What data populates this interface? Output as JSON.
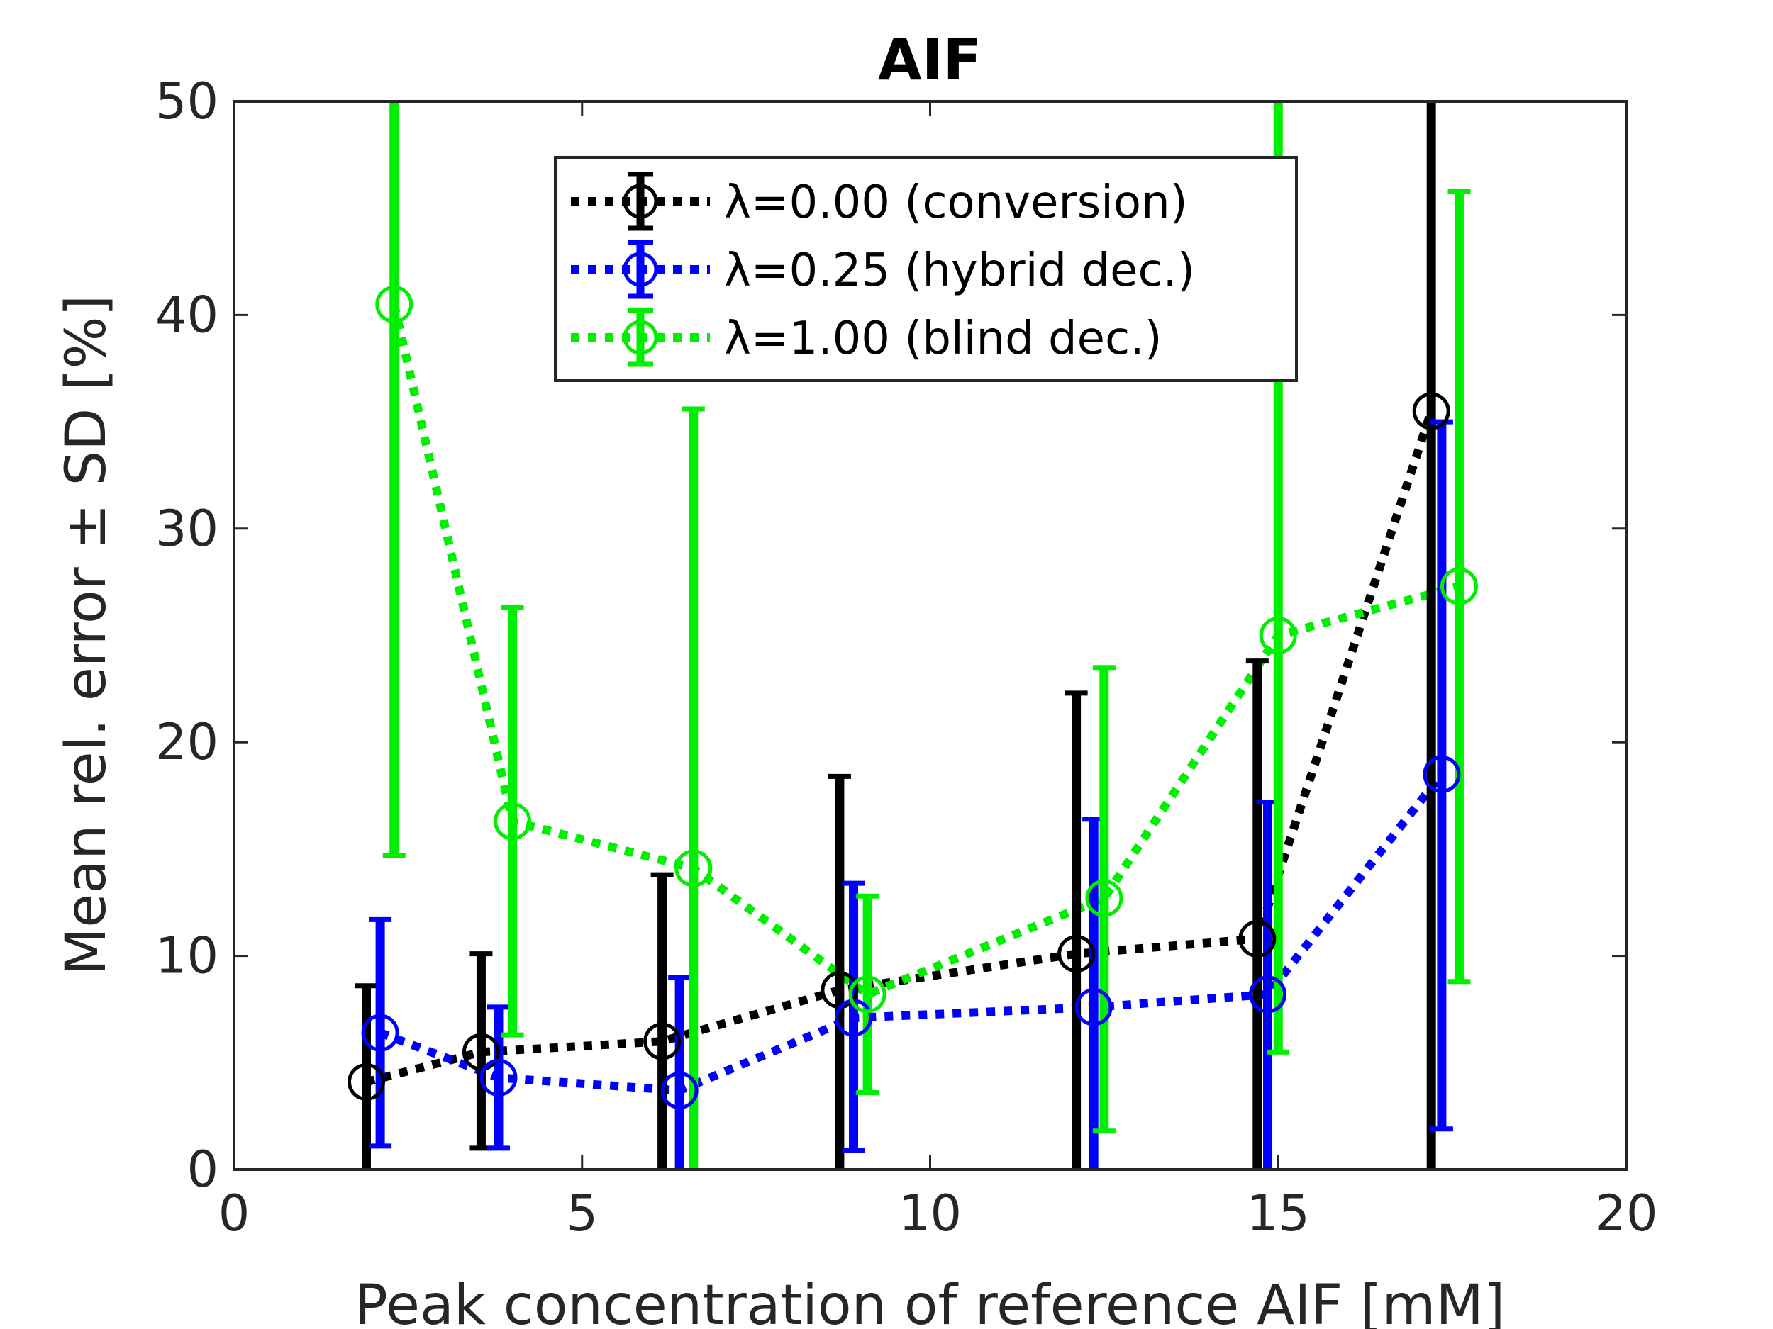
{
  "chart_data": {
    "type": "scatter",
    "title": "AIF",
    "xlabel": "Peak concentration of reference AIF [mM]",
    "ylabel": "Mean rel. error ± SD [%]",
    "xlim": [
      0,
      20
    ],
    "ylim": [
      0,
      50
    ],
    "xticks": [
      0,
      5,
      10,
      15,
      20
    ],
    "yticks": [
      0,
      10,
      20,
      30,
      40,
      50
    ],
    "grid": false,
    "legend_position": "top-center",
    "series": [
      {
        "name": "λ=0.00 (conversion)",
        "color": "#000000",
        "points": [
          {
            "x": 1.9,
            "y": 4.1,
            "lo": 0.0,
            "hi": 8.6
          },
          {
            "x": 3.55,
            "y": 5.5,
            "lo": 1.0,
            "hi": 10.1
          },
          {
            "x": 6.15,
            "y": 6.0,
            "lo": 0.0,
            "hi": 13.8
          },
          {
            "x": 8.7,
            "y": 8.4,
            "lo": 0.0,
            "hi": 18.4
          },
          {
            "x": 12.1,
            "y": 10.1,
            "lo": 0.0,
            "hi": 22.3
          },
          {
            "x": 14.7,
            "y": 10.8,
            "lo": 0.0,
            "hi": 23.8
          },
          {
            "x": 17.2,
            "y": 35.5,
            "lo": 0.0,
            "hi": 50.0
          }
        ]
      },
      {
        "name": "λ=0.25 (hybrid dec.)",
        "color": "#0000ff",
        "points": [
          {
            "x": 2.1,
            "y": 6.4,
            "lo": 1.1,
            "hi": 11.7
          },
          {
            "x": 3.8,
            "y": 4.3,
            "lo": 1.0,
            "hi": 7.6
          },
          {
            "x": 6.4,
            "y": 3.7,
            "lo": 0.0,
            "hi": 9.0
          },
          {
            "x": 8.9,
            "y": 7.1,
            "lo": 0.9,
            "hi": 13.4
          },
          {
            "x": 12.35,
            "y": 7.6,
            "lo": 0.0,
            "hi": 16.4
          },
          {
            "x": 14.85,
            "y": 8.2,
            "lo": 0.0,
            "hi": 17.2
          },
          {
            "x": 17.35,
            "y": 18.5,
            "lo": 1.9,
            "hi": 35.0
          }
        ]
      },
      {
        "name": "λ=1.00 (blind dec.)",
        "color": "#00ee00",
        "points": [
          {
            "x": 2.3,
            "y": 40.5,
            "lo": 14.7,
            "hi": 50.0
          },
          {
            "x": 4.0,
            "y": 16.3,
            "lo": 6.3,
            "hi": 26.3
          },
          {
            "x": 6.6,
            "y": 14.1,
            "lo": 0.0,
            "hi": 35.6
          },
          {
            "x": 9.1,
            "y": 8.2,
            "lo": 3.6,
            "hi": 12.8
          },
          {
            "x": 12.5,
            "y": 12.7,
            "lo": 1.8,
            "hi": 23.5
          },
          {
            "x": 15.0,
            "y": 25.0,
            "lo": 5.5,
            "hi": 50.0
          },
          {
            "x": 17.6,
            "y": 27.3,
            "lo": 8.8,
            "hi": 45.8
          }
        ]
      }
    ]
  }
}
